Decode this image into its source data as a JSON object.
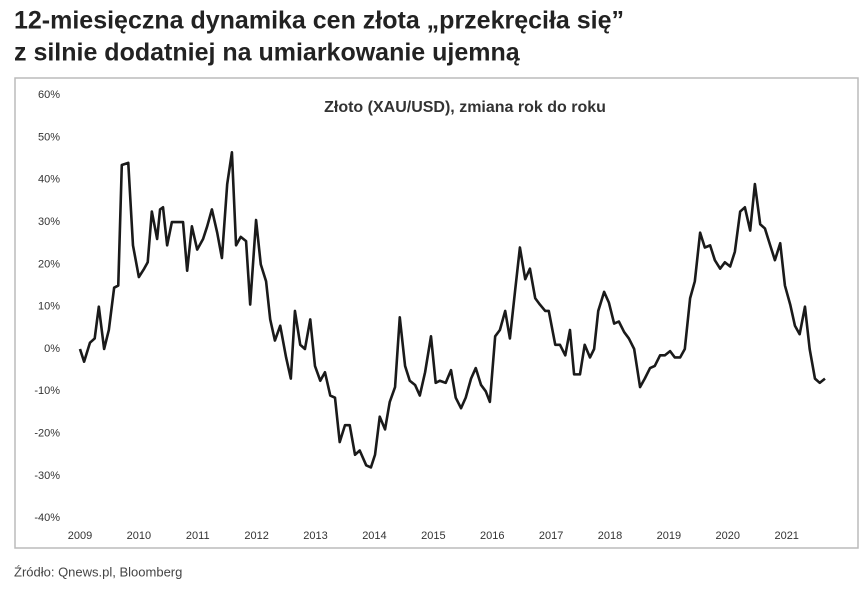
{
  "chart_data": {
    "type": "line",
    "title": [
      "12-miesięczna dynamika cen złota „przekręciła się”",
      "z silnie dodatniej na umiarkowanie ujemną"
    ],
    "chart_title": "Złoto (XAU/USD), zmiana rok do roku",
    "source": "Źródło: Qnews.pl, Bloomberg",
    "grid": false,
    "xlim": [
      2008.8,
      2021.99
    ],
    "ylim": [
      -40,
      60
    ],
    "xticks": [
      2009,
      2010,
      2011,
      2012,
      2013,
      2014,
      2015,
      2016,
      2017,
      2018,
      2019,
      2020,
      2021
    ],
    "yticks": [
      {
        "value": -40,
        "label": "-40%"
      },
      {
        "value": -30,
        "label": "-30%"
      },
      {
        "value": -20,
        "label": "-20%"
      },
      {
        "value": -10,
        "label": "-10%"
      },
      {
        "value": 0,
        "label": "0%"
      },
      {
        "value": 10,
        "label": "10%"
      },
      {
        "value": 20,
        "label": "20%"
      },
      {
        "value": 30,
        "label": "30%"
      },
      {
        "value": 40,
        "label": "40%"
      },
      {
        "value": 50,
        "label": "50%"
      },
      {
        "value": 60,
        "label": "60%"
      }
    ],
    "series": [
      {
        "color": "#1a1a1a",
        "x": [
          2009.0,
          2009.07,
          2009.17,
          2009.25,
          2009.32,
          2009.41,
          2009.49,
          2009.58,
          2009.65,
          2009.71,
          2009.82,
          2009.9,
          2010.0,
          2010.09,
          2010.15,
          2010.22,
          2010.31,
          2010.36,
          2010.41,
          2010.48,
          2010.56,
          2010.66,
          2010.75,
          2010.82,
          2010.9,
          2010.99,
          2011.09,
          2011.16,
          2011.24,
          2011.33,
          2011.41,
          2011.5,
          2011.58,
          2011.65,
          2011.73,
          2011.82,
          2011.89,
          2011.99,
          2012.07,
          2012.16,
          2012.23,
          2012.31,
          2012.4,
          2012.5,
          2012.58,
          2012.65,
          2012.74,
          2012.82,
          2012.91,
          2012.99,
          2013.08,
          2013.16,
          2013.25,
          2013.33,
          2013.41,
          2013.5,
          2013.58,
          2013.67,
          2013.75,
          2013.86,
          2013.94,
          2014.01,
          2014.09,
          2014.18,
          2014.26,
          2014.35,
          2014.43,
          2014.52,
          2014.6,
          2014.69,
          2014.77,
          2014.86,
          2014.96,
          2015.04,
          2015.11,
          2015.21,
          2015.3,
          2015.38,
          2015.47,
          2015.55,
          2015.64,
          2015.72,
          2015.81,
          2015.89,
          2015.96,
          2016.05,
          2016.13,
          2016.22,
          2016.3,
          2016.39,
          2016.47,
          2016.56,
          2016.64,
          2016.73,
          2016.81,
          2016.9,
          2016.96,
          2017.07,
          2017.15,
          2017.24,
          2017.32,
          2017.39,
          2017.49,
          2017.57,
          2017.66,
          2017.73,
          2017.8,
          2017.9,
          2017.98,
          2018.07,
          2018.15,
          2018.24,
          2018.32,
          2018.41,
          2018.51,
          2018.59,
          2018.68,
          2018.76,
          2018.85,
          2018.93,
          2019.02,
          2019.1,
          2019.19,
          2019.27,
          2019.36,
          2019.44,
          2019.53,
          2019.61,
          2019.7,
          2019.78,
          2019.87,
          2019.95,
          2020.04,
          2020.12,
          2020.21,
          2020.29,
          2020.38,
          2020.46,
          2020.55,
          2020.63,
          2020.72,
          2020.8,
          2020.89,
          2020.97,
          2021.06,
          2021.14,
          2021.22,
          2021.31,
          2021.39,
          2021.48,
          2021.56,
          2021.65
        ],
        "values": [
          0,
          -3,
          1.5,
          2.5,
          10,
          0,
          4.5,
          14.5,
          15,
          43.5,
          44,
          24.5,
          17,
          19,
          20.5,
          32.5,
          26,
          33,
          33.5,
          24.5,
          30,
          30,
          30,
          18.5,
          29,
          23.5,
          26,
          29,
          33,
          27.5,
          21.5,
          39,
          46.5,
          24.5,
          26.5,
          25.5,
          10.5,
          30.5,
          20,
          16,
          7,
          2,
          5.5,
          -2,
          -7,
          9,
          1,
          0,
          7,
          -4,
          -7.5,
          -5.5,
          -11,
          -11.5,
          -22,
          -18,
          -18,
          -25,
          -24,
          -27.5,
          -28,
          -25,
          -16,
          -19,
          -12.5,
          -9,
          7.5,
          -4,
          -7.5,
          -8.5,
          -11,
          -5.5,
          3,
          -8,
          -7.5,
          -8,
          -5,
          -11.5,
          -14,
          -11.5,
          -7,
          -4.5,
          -8.5,
          -10,
          -12.5,
          3,
          4.5,
          9,
          2.5,
          14,
          24,
          16.5,
          19,
          12,
          10.5,
          9,
          9,
          1,
          1,
          -1.5,
          4.5,
          -6,
          -6,
          1,
          -2,
          0,
          9,
          13.5,
          11,
          6,
          6.5,
          4,
          2.5,
          0,
          -9,
          -7,
          -4.5,
          -4,
          -1.5,
          -1.5,
          -0.5,
          -2,
          -2,
          0,
          12,
          16,
          27.5,
          24,
          24.5,
          21,
          19,
          20.5,
          19.5,
          23,
          32.5,
          33.5,
          28,
          39,
          29.5,
          28.5,
          24.5,
          21,
          25,
          15,
          10.5,
          5.5,
          3.5,
          10,
          0,
          -7,
          -8,
          -7
        ]
      }
    ]
  }
}
